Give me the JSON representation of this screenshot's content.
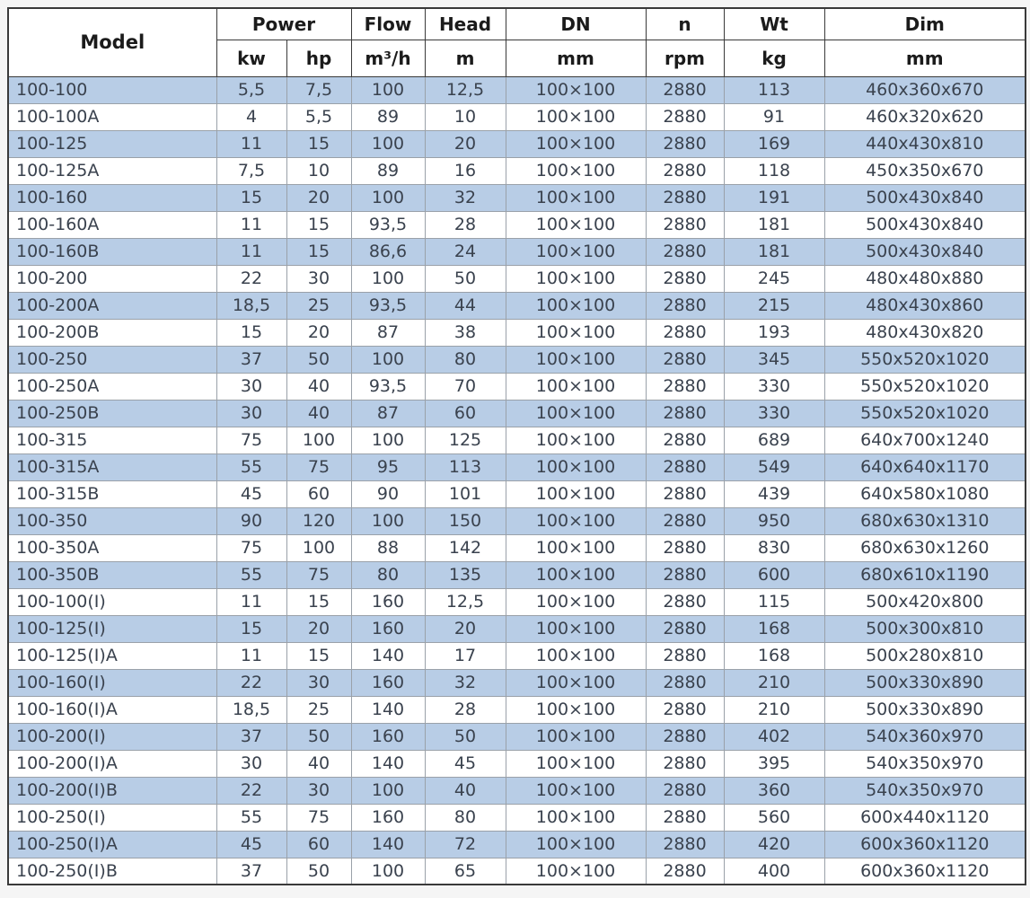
{
  "table": {
    "columns": {
      "model": {
        "label": "Model"
      },
      "power": {
        "label": "Power",
        "units": {
          "kw": "kw",
          "hp": "hp"
        }
      },
      "flow": {
        "label": "Flow",
        "unit": "m³/h"
      },
      "head": {
        "label": "Head",
        "unit": "m"
      },
      "dn": {
        "label": "DN",
        "unit": "mm"
      },
      "n": {
        "label": "n",
        "unit": "rpm"
      },
      "wt": {
        "label": "Wt",
        "unit": "kg"
      },
      "dim": {
        "label": "Dim",
        "unit": "mm"
      }
    },
    "rows": [
      {
        "model": "100-100",
        "kw": "5,5",
        "hp": "7,5",
        "flow": "100",
        "head": "12,5",
        "dn": "100×100",
        "n": "2880",
        "wt": "113",
        "dim": "460x360x670"
      },
      {
        "model": "100-100A",
        "kw": "4",
        "hp": "5,5",
        "flow": "89",
        "head": "10",
        "dn": "100×100",
        "n": "2880",
        "wt": "91",
        "dim": "460x320x620"
      },
      {
        "model": "100-125",
        "kw": "11",
        "hp": "15",
        "flow": "100",
        "head": "20",
        "dn": "100×100",
        "n": "2880",
        "wt": "169",
        "dim": "440x430x810"
      },
      {
        "model": "100-125A",
        "kw": "7,5",
        "hp": "10",
        "flow": "89",
        "head": "16",
        "dn": "100×100",
        "n": "2880",
        "wt": "118",
        "dim": "450x350x670"
      },
      {
        "model": "100-160",
        "kw": "15",
        "hp": "20",
        "flow": "100",
        "head": "32",
        "dn": "100×100",
        "n": "2880",
        "wt": "191",
        "dim": "500x430x840"
      },
      {
        "model": "100-160A",
        "kw": "11",
        "hp": "15",
        "flow": "93,5",
        "head": "28",
        "dn": "100×100",
        "n": "2880",
        "wt": "181",
        "dim": "500x430x840"
      },
      {
        "model": "100-160B",
        "kw": "11",
        "hp": "15",
        "flow": "86,6",
        "head": "24",
        "dn": "100×100",
        "n": "2880",
        "wt": "181",
        "dim": "500x430x840"
      },
      {
        "model": "100-200",
        "kw": "22",
        "hp": "30",
        "flow": "100",
        "head": "50",
        "dn": "100×100",
        "n": "2880",
        "wt": "245",
        "dim": "480x480x880"
      },
      {
        "model": "100-200A",
        "kw": "18,5",
        "hp": "25",
        "flow": "93,5",
        "head": "44",
        "dn": "100×100",
        "n": "2880",
        "wt": "215",
        "dim": "480x430x860"
      },
      {
        "model": "100-200B",
        "kw": "15",
        "hp": "20",
        "flow": "87",
        "head": "38",
        "dn": "100×100",
        "n": "2880",
        "wt": "193",
        "dim": "480x430x820"
      },
      {
        "model": "100-250",
        "kw": "37",
        "hp": "50",
        "flow": "100",
        "head": "80",
        "dn": "100×100",
        "n": "2880",
        "wt": "345",
        "dim": "550x520x1020"
      },
      {
        "model": "100-250A",
        "kw": "30",
        "hp": "40",
        "flow": "93,5",
        "head": "70",
        "dn": "100×100",
        "n": "2880",
        "wt": "330",
        "dim": "550x520x1020"
      },
      {
        "model": "100-250B",
        "kw": "30",
        "hp": "40",
        "flow": "87",
        "head": "60",
        "dn": "100×100",
        "n": "2880",
        "wt": "330",
        "dim": "550x520x1020"
      },
      {
        "model": "100-315",
        "kw": "75",
        "hp": "100",
        "flow": "100",
        "head": "125",
        "dn": "100×100",
        "n": "2880",
        "wt": "689",
        "dim": "640x700x1240"
      },
      {
        "model": "100-315A",
        "kw": "55",
        "hp": "75",
        "flow": "95",
        "head": "113",
        "dn": "100×100",
        "n": "2880",
        "wt": "549",
        "dim": "640x640x1170"
      },
      {
        "model": "100-315B",
        "kw": "45",
        "hp": "60",
        "flow": "90",
        "head": "101",
        "dn": "100×100",
        "n": "2880",
        "wt": "439",
        "dim": "640x580x1080"
      },
      {
        "model": "100-350",
        "kw": "90",
        "hp": "120",
        "flow": "100",
        "head": "150",
        "dn": "100×100",
        "n": "2880",
        "wt": "950",
        "dim": "680x630x1310"
      },
      {
        "model": "100-350A",
        "kw": "75",
        "hp": "100",
        "flow": "88",
        "head": "142",
        "dn": "100×100",
        "n": "2880",
        "wt": "830",
        "dim": "680x630x1260"
      },
      {
        "model": "100-350B",
        "kw": "55",
        "hp": "75",
        "flow": "80",
        "head": "135",
        "dn": "100×100",
        "n": "2880",
        "wt": "600",
        "dim": "680x610x1190"
      },
      {
        "model": "100-100(I)",
        "kw": "11",
        "hp": "15",
        "flow": "160",
        "head": "12,5",
        "dn": "100×100",
        "n": "2880",
        "wt": "115",
        "dim": "500x420x800"
      },
      {
        "model": "100-125(I)",
        "kw": "15",
        "hp": "20",
        "flow": "160",
        "head": "20",
        "dn": "100×100",
        "n": "2880",
        "wt": "168",
        "dim": "500x300x810"
      },
      {
        "model": "100-125(I)A",
        "kw": "11",
        "hp": "15",
        "flow": "140",
        "head": "17",
        "dn": "100×100",
        "n": "2880",
        "wt": "168",
        "dim": "500x280x810"
      },
      {
        "model": "100-160(I)",
        "kw": "22",
        "hp": "30",
        "flow": "160",
        "head": "32",
        "dn": "100×100",
        "n": "2880",
        "wt": "210",
        "dim": "500x330x890"
      },
      {
        "model": "100-160(I)A",
        "kw": "18,5",
        "hp": "25",
        "flow": "140",
        "head": "28",
        "dn": "100×100",
        "n": "2880",
        "wt": "210",
        "dim": "500x330x890"
      },
      {
        "model": "100-200(I)",
        "kw": "37",
        "hp": "50",
        "flow": "160",
        "head": "50",
        "dn": "100×100",
        "n": "2880",
        "wt": "402",
        "dim": "540x360x970"
      },
      {
        "model": "100-200(I)A",
        "kw": "30",
        "hp": "40",
        "flow": "140",
        "head": "45",
        "dn": "100×100",
        "n": "2880",
        "wt": "395",
        "dim": "540x350x970"
      },
      {
        "model": "100-200(I)B",
        "kw": "22",
        "hp": "30",
        "flow": "100",
        "head": "40",
        "dn": "100×100",
        "n": "2880",
        "wt": "360",
        "dim": "540x350x970"
      },
      {
        "model": "100-250(I)",
        "kw": "55",
        "hp": "75",
        "flow": "160",
        "head": "80",
        "dn": "100×100",
        "n": "2880",
        "wt": "560",
        "dim": "600x440x1120"
      },
      {
        "model": "100-250(I)A",
        "kw": "45",
        "hp": "60",
        "flow": "140",
        "head": "72",
        "dn": "100×100",
        "n": "2880",
        "wt": "420",
        "dim": "600x360x1120"
      },
      {
        "model": "100-250(I)B",
        "kw": "37",
        "hp": "50",
        "flow": "100",
        "head": "65",
        "dn": "100×100",
        "n": "2880",
        "wt": "400",
        "dim": "600x360x1120"
      }
    ],
    "colors": {
      "row_alt_bg": "#b8cde6",
      "row_bg": "#ffffff",
      "header_text": "#1b1b1b",
      "body_text": "#3a424e",
      "grid_line": "#9aa1a9",
      "outer_border": "#3a3a3a"
    }
  }
}
